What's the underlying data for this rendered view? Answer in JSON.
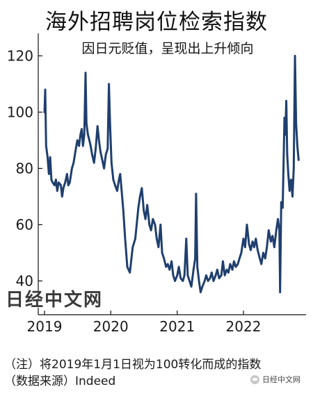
{
  "chart_data": {
    "type": "line",
    "title": "海外招聘岗位检索指数",
    "subtitle": "因日元贬值，呈现出上升倾向",
    "x_ticks": [
      "2019",
      "2020",
      "2021",
      "2022"
    ],
    "y_ticks": [
      40,
      60,
      80,
      100,
      120
    ],
    "ylim": [
      28,
      128
    ],
    "xlim": [
      "2019-01-01",
      "2022-11-15"
    ],
    "grid": false,
    "line_color": "#1f3f6e",
    "series": [
      {
        "points": [
          [
            "2019-01-01",
            100
          ],
          [
            "2019-01-05",
            108
          ],
          [
            "2019-01-10",
            88
          ],
          [
            "2019-01-18",
            84
          ],
          [
            "2019-01-25",
            78
          ],
          [
            "2019-02-01",
            84
          ],
          [
            "2019-02-08",
            76
          ],
          [
            "2019-02-15",
            75
          ],
          [
            "2019-02-25",
            74
          ],
          [
            "2019-03-05",
            76
          ],
          [
            "2019-03-12",
            72
          ],
          [
            "2019-03-20",
            75
          ],
          [
            "2019-04-01",
            74
          ],
          [
            "2019-04-08",
            70
          ],
          [
            "2019-04-15",
            73
          ],
          [
            "2019-04-25",
            75
          ],
          [
            "2019-05-05",
            78
          ],
          [
            "2019-05-12",
            74
          ],
          [
            "2019-05-20",
            75
          ],
          [
            "2019-06-01",
            80
          ],
          [
            "2019-06-10",
            82
          ],
          [
            "2019-06-20",
            86
          ],
          [
            "2019-07-01",
            90
          ],
          [
            "2019-07-10",
            88
          ],
          [
            "2019-07-18",
            92
          ],
          [
            "2019-07-25",
            94
          ],
          [
            "2019-08-01",
            88
          ],
          [
            "2019-08-08",
            92
          ],
          [
            "2019-08-15",
            114
          ],
          [
            "2019-08-20",
            96
          ],
          [
            "2019-08-28",
            92
          ],
          [
            "2019-09-05",
            90
          ],
          [
            "2019-09-12",
            88
          ],
          [
            "2019-09-20",
            85
          ],
          [
            "2019-10-01",
            82
          ],
          [
            "2019-10-10",
            87
          ],
          [
            "2019-10-20",
            95
          ],
          [
            "2019-10-28",
            90
          ],
          [
            "2019-11-05",
            86
          ],
          [
            "2019-11-15",
            83
          ],
          [
            "2019-11-25",
            80
          ],
          [
            "2019-12-05",
            85
          ],
          [
            "2019-12-15",
            87
          ],
          [
            "2019-12-22",
            110
          ],
          [
            "2019-12-28",
            96
          ],
          [
            "2020-01-05",
            82
          ],
          [
            "2020-01-15",
            76
          ],
          [
            "2020-01-25",
            74
          ],
          [
            "2020-02-05",
            72
          ],
          [
            "2020-02-15",
            76
          ],
          [
            "2020-02-22",
            78
          ],
          [
            "2020-03-01",
            72
          ],
          [
            "2020-03-10",
            65
          ],
          [
            "2020-03-20",
            55
          ],
          [
            "2020-04-01",
            45
          ],
          [
            "2020-04-15",
            43
          ],
          [
            "2020-05-01",
            52
          ],
          [
            "2020-05-15",
            55
          ],
          [
            "2020-06-01",
            66
          ],
          [
            "2020-06-10",
            70
          ],
          [
            "2020-06-20",
            73
          ],
          [
            "2020-07-01",
            65
          ],
          [
            "2020-07-10",
            62
          ],
          [
            "2020-07-20",
            67
          ],
          [
            "2020-08-01",
            60
          ],
          [
            "2020-08-10",
            58
          ],
          [
            "2020-08-20",
            62
          ],
          [
            "2020-09-01",
            60
          ],
          [
            "2020-09-10",
            55
          ],
          [
            "2020-09-20",
            52
          ],
          [
            "2020-10-01",
            60
          ],
          [
            "2020-10-10",
            50
          ],
          [
            "2020-10-20",
            48
          ],
          [
            "2020-11-01",
            45
          ],
          [
            "2020-11-10",
            46
          ],
          [
            "2020-11-20",
            44
          ],
          [
            "2020-12-01",
            47
          ],
          [
            "2020-12-10",
            42
          ],
          [
            "2020-12-20",
            40
          ],
          [
            "2021-01-01",
            42
          ],
          [
            "2021-01-10",
            45
          ],
          [
            "2021-01-20",
            41
          ],
          [
            "2021-02-01",
            40
          ],
          [
            "2021-02-10",
            42
          ],
          [
            "2021-02-20",
            55
          ],
          [
            "2021-02-28",
            42
          ],
          [
            "2021-03-10",
            40
          ],
          [
            "2021-03-20",
            38
          ],
          [
            "2021-04-01",
            44
          ],
          [
            "2021-04-10",
            48
          ],
          [
            "2021-04-15",
            71
          ],
          [
            "2021-04-22",
            45
          ],
          [
            "2021-05-01",
            40
          ],
          [
            "2021-05-10",
            36
          ],
          [
            "2021-05-20",
            38
          ],
          [
            "2021-06-01",
            40
          ],
          [
            "2021-06-10",
            42
          ],
          [
            "2021-06-20",
            40
          ],
          [
            "2021-07-01",
            41
          ],
          [
            "2021-07-10",
            43
          ],
          [
            "2021-07-20",
            40
          ],
          [
            "2021-08-01",
            42
          ],
          [
            "2021-08-10",
            44
          ],
          [
            "2021-08-20",
            41
          ],
          [
            "2021-09-01",
            42
          ],
          [
            "2021-09-10",
            47
          ],
          [
            "2021-09-20",
            42
          ],
          [
            "2021-10-01",
            44
          ],
          [
            "2021-10-10",
            43
          ],
          [
            "2021-10-20",
            46
          ],
          [
            "2021-11-01",
            44
          ],
          [
            "2021-11-10",
            47
          ],
          [
            "2021-11-20",
            45
          ],
          [
            "2021-12-01",
            46
          ],
          [
            "2021-12-10",
            48
          ],
          [
            "2021-12-20",
            50
          ],
          [
            "2022-01-01",
            55
          ],
          [
            "2022-01-10",
            52
          ],
          [
            "2022-01-20",
            60
          ],
          [
            "2022-02-01",
            53
          ],
          [
            "2022-02-10",
            51
          ],
          [
            "2022-02-20",
            54
          ],
          [
            "2022-03-01",
            52
          ],
          [
            "2022-03-10",
            55
          ],
          [
            "2022-03-20",
            51
          ],
          [
            "2022-04-01",
            48
          ],
          [
            "2022-04-10",
            46
          ],
          [
            "2022-04-20",
            50
          ],
          [
            "2022-05-01",
            48
          ],
          [
            "2022-05-10",
            52
          ],
          [
            "2022-05-20",
            58
          ],
          [
            "2022-06-01",
            54
          ],
          [
            "2022-06-10",
            56
          ],
          [
            "2022-06-20",
            52
          ],
          [
            "2022-07-01",
            58
          ],
          [
            "2022-07-10",
            62
          ],
          [
            "2022-07-18",
            58
          ],
          [
            "2022-07-22",
            36
          ],
          [
            "2022-07-28",
            68
          ],
          [
            "2022-08-05",
            66
          ],
          [
            "2022-08-10",
            82
          ],
          [
            "2022-08-15",
            98
          ],
          [
            "2022-08-20",
            92
          ],
          [
            "2022-08-25",
            104
          ],
          [
            "2022-08-30",
            85
          ],
          [
            "2022-09-05",
            78
          ],
          [
            "2022-09-12",
            72
          ],
          [
            "2022-09-20",
            76
          ],
          [
            "2022-09-28",
            70
          ],
          [
            "2022-10-05",
            80
          ],
          [
            "2022-10-12",
            120
          ],
          [
            "2022-10-18",
            96
          ],
          [
            "2022-10-25",
            88
          ],
          [
            "2022-11-01",
            83
          ]
        ]
      }
    ]
  },
  "watermark": "日经中文网",
  "notes": [
    "（注）将2019年1月1日视为100转化而成的指数",
    "（数据来源）Indeed"
  ],
  "credit": {
    "icon": "wechat-icon",
    "text": "日经中文网"
  }
}
